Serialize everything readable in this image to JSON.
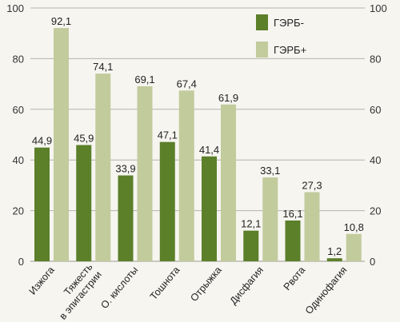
{
  "chart_data": {
    "type": "bar",
    "categories": [
      [
        "Изжога"
      ],
      [
        "Тяжесть",
        "в эпигастрии"
      ],
      [
        "О. кислоты"
      ],
      [
        "Тошнота"
      ],
      [
        "Отрыжка"
      ],
      [
        "Дисфагия"
      ],
      [
        "Рвота"
      ],
      [
        "Одинофагия"
      ]
    ],
    "series": [
      {
        "name": "ГЭРБ-",
        "values": [
          44.9,
          45.9,
          33.9,
          47.1,
          41.4,
          12.1,
          16.1,
          1.2
        ],
        "labels": [
          "44,9",
          "45,9",
          "33,9",
          "47,1",
          "41,4",
          "12,1",
          "16,1",
          "1,2"
        ]
      },
      {
        "name": "ГЭРБ+",
        "values": [
          92.1,
          74.1,
          69.1,
          67.4,
          61.9,
          33.1,
          27.3,
          10.8
        ],
        "labels": [
          "92,1",
          "74,1",
          "69,1",
          "67,4",
          "61,9",
          "33,1",
          "27,3",
          "10,8"
        ]
      }
    ],
    "ylim": [
      0,
      100
    ],
    "yticks": [
      "0",
      "20",
      "40",
      "60",
      "80",
      "100"
    ],
    "grid": true,
    "legend_position": "top-right",
    "colors": {
      "series1": "#5c7f2a",
      "series2": "#c2cb9c",
      "grid": "#b4b4ac",
      "axis": "#9a9a92"
    }
  }
}
